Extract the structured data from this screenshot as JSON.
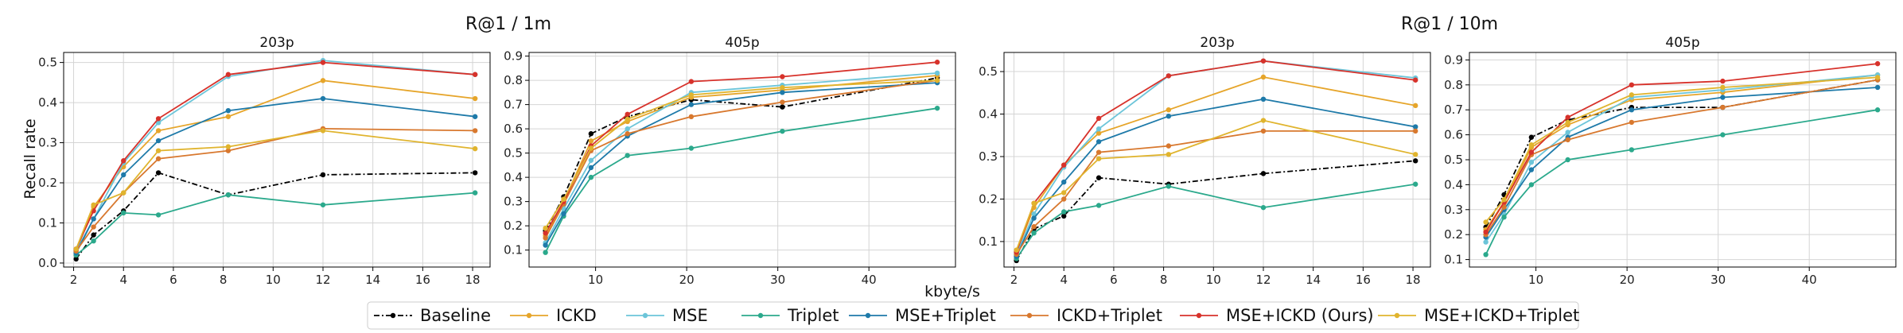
{
  "chart_data": {
    "type": "line",
    "suptitles": [
      "R@1 / 1m",
      "R@1 / 10m"
    ],
    "xlabel": "kbyte/s",
    "ylabel": "Recall rate",
    "series_styles": [
      {
        "name": "Baseline",
        "color": "#000000",
        "dash": "dashdot"
      },
      {
        "name": "ICKD",
        "color": "#e6a52a",
        "dash": "solid"
      },
      {
        "name": "MSE",
        "color": "#6cc5d9",
        "dash": "solid"
      },
      {
        "name": "Triplet",
        "color": "#2ba98c",
        "dash": "solid"
      },
      {
        "name": "MSE+Triplet",
        "color": "#1e7aa9",
        "dash": "solid"
      },
      {
        "name": "ICKD+Triplet",
        "color": "#d8782e",
        "dash": "solid"
      },
      {
        "name": "MSE+ICKD (Ours)",
        "color": "#d7322b",
        "dash": "solid"
      },
      {
        "name": "MSE+ICKD+Triplet",
        "color": "#e0b42e",
        "dash": "solid"
      }
    ],
    "panels": [
      {
        "title": "203p",
        "xlim": [
          1.6,
          18.7
        ],
        "ylim": [
          -0.01,
          0.525
        ],
        "xticks": [
          2,
          4,
          6,
          8,
          10,
          12,
          14,
          16,
          18
        ],
        "yticks": [
          0.0,
          0.1,
          0.2,
          0.3,
          0.4,
          0.5
        ],
        "ytick_labels": [
          "0.0",
          "0.1",
          "0.2",
          "0.3",
          "0.4",
          "0.5"
        ],
        "x": [
          2.1,
          2.8,
          4.0,
          5.4,
          8.2,
          12.0,
          18.1
        ],
        "series": [
          {
            "name": "Baseline",
            "values": [
              0.01,
              0.07,
              0.13,
              0.225,
              0.17,
              0.22,
              0.225
            ]
          },
          {
            "name": "ICKD",
            "values": [
              0.03,
              0.14,
              0.24,
              0.33,
              0.365,
              0.455,
              0.41
            ]
          },
          {
            "name": "MSE",
            "values": [
              0.03,
              0.11,
              0.25,
              0.35,
              0.465,
              0.505,
              0.47
            ]
          },
          {
            "name": "Triplet",
            "values": [
              0.02,
              0.055,
              0.125,
              0.12,
              0.17,
              0.145,
              0.175
            ]
          },
          {
            "name": "MSE+Triplet",
            "values": [
              0.025,
              0.11,
              0.22,
              0.305,
              0.38,
              0.41,
              0.365
            ]
          },
          {
            "name": "ICKD+Triplet",
            "values": [
              0.03,
              0.09,
              0.175,
              0.26,
              0.28,
              0.335,
              0.33
            ]
          },
          {
            "name": "MSE+ICKD (Ours)",
            "values": [
              0.035,
              0.13,
              0.255,
              0.36,
              0.47,
              0.5,
              0.47
            ]
          },
          {
            "name": "MSE+ICKD+Triplet",
            "values": [
              0.035,
              0.145,
              0.175,
              0.28,
              0.29,
              0.33,
              0.285
            ]
          }
        ]
      },
      {
        "title": "405p",
        "xlim": [
          2.7,
          49.5
        ],
        "ylim": [
          0.03,
          0.915
        ],
        "xticks": [
          10,
          20,
          30,
          40
        ],
        "yticks": [
          0.1,
          0.2,
          0.3,
          0.4,
          0.5,
          0.6,
          0.7,
          0.8,
          0.9
        ],
        "ytick_labels": [
          "0.1",
          "0.2",
          "0.3",
          "0.4",
          "0.5",
          "0.6",
          "0.7",
          "0.8",
          "0.9"
        ],
        "x": [
          4.5,
          6.5,
          9.5,
          13.5,
          20.5,
          30.5,
          47.5
        ],
        "series": [
          {
            "name": "Baseline",
            "values": [
              0.18,
              0.32,
              0.58,
              0.65,
              0.72,
              0.69,
              0.81
            ]
          },
          {
            "name": "ICKD",
            "values": [
              0.16,
              0.3,
              0.55,
              0.63,
              0.73,
              0.76,
              0.82
            ]
          },
          {
            "name": "MSE",
            "values": [
              0.13,
              0.27,
              0.47,
              0.6,
              0.75,
              0.78,
              0.83
            ]
          },
          {
            "name": "Triplet",
            "values": [
              0.09,
              0.24,
              0.4,
              0.49,
              0.52,
              0.59,
              0.685
            ]
          },
          {
            "name": "MSE+Triplet",
            "values": [
              0.12,
              0.25,
              0.44,
              0.57,
              0.7,
              0.75,
              0.79
            ]
          },
          {
            "name": "ICKD+Triplet",
            "values": [
              0.15,
              0.29,
              0.51,
              0.58,
              0.65,
              0.71,
              0.8
            ]
          },
          {
            "name": "MSE+ICKD (Ours)",
            "values": [
              0.17,
              0.3,
              0.53,
              0.66,
              0.795,
              0.815,
              0.875
            ]
          },
          {
            "name": "MSE+ICKD+Triplet",
            "values": [
              0.19,
              0.31,
              0.52,
              0.64,
              0.74,
              0.77,
              0.8
            ]
          }
        ]
      },
      {
        "title": "203p",
        "xlim": [
          1.6,
          18.7
        ],
        "ylim": [
          0.04,
          0.545
        ],
        "xticks": [
          2,
          4,
          6,
          8,
          10,
          12,
          14,
          16,
          18
        ],
        "yticks": [
          0.1,
          0.2,
          0.3,
          0.4,
          0.5
        ],
        "ytick_labels": [
          "0.1",
          "0.2",
          "0.3",
          "0.4",
          "0.5"
        ],
        "x": [
          2.1,
          2.8,
          4.0,
          5.4,
          8.2,
          12.0,
          18.1
        ],
        "series": [
          {
            "name": "Baseline",
            "values": [
              0.055,
              0.13,
              0.16,
              0.25,
              0.235,
              0.26,
              0.29
            ]
          },
          {
            "name": "ICKD",
            "values": [
              0.075,
              0.18,
              0.28,
              0.355,
              0.41,
              0.487,
              0.42
            ]
          },
          {
            "name": "MSE",
            "values": [
              0.07,
              0.165,
              0.275,
              0.365,
              0.49,
              0.525,
              0.485
            ]
          },
          {
            "name": "Triplet",
            "values": [
              0.06,
              0.12,
              0.17,
              0.185,
              0.23,
              0.18,
              0.235
            ]
          },
          {
            "name": "MSE+Triplet",
            "values": [
              0.065,
              0.155,
              0.24,
              0.335,
              0.395,
              0.435,
              0.37
            ]
          },
          {
            "name": "ICKD+Triplet",
            "values": [
              0.07,
              0.135,
              0.2,
              0.31,
              0.325,
              0.36,
              0.36
            ]
          },
          {
            "name": "MSE+ICKD (Ours)",
            "values": [
              0.075,
              0.19,
              0.28,
              0.39,
              0.49,
              0.525,
              0.48
            ]
          },
          {
            "name": "MSE+ICKD+Triplet",
            "values": [
              0.08,
              0.19,
              0.215,
              0.295,
              0.305,
              0.385,
              0.305
            ]
          }
        ]
      },
      {
        "title": "405p",
        "xlim": [
          2.7,
          49.5
        ],
        "ylim": [
          0.07,
          0.93
        ],
        "xticks": [
          10,
          20,
          30,
          40
        ],
        "yticks": [
          0.1,
          0.2,
          0.3,
          0.4,
          0.5,
          0.6,
          0.7,
          0.8,
          0.9
        ],
        "ytick_labels": [
          "0.1",
          "0.2",
          "0.3",
          "0.4",
          "0.5",
          "0.6",
          "0.7",
          "0.8",
          "0.9"
        ],
        "x": [
          4.5,
          6.5,
          9.5,
          13.5,
          20.5,
          30.5,
          47.5
        ],
        "series": [
          {
            "name": "Baseline",
            "values": [
              0.23,
              0.36,
              0.59,
              0.66,
              0.71,
              0.71,
              0.82
            ]
          },
          {
            "name": "ICKD",
            "values": [
              0.22,
              0.33,
              0.55,
              0.64,
              0.74,
              0.77,
              0.84
            ]
          },
          {
            "name": "MSE",
            "values": [
              0.17,
              0.28,
              0.49,
              0.61,
              0.75,
              0.78,
              0.84
            ]
          },
          {
            "name": "Triplet",
            "values": [
              0.12,
              0.27,
              0.4,
              0.5,
              0.54,
              0.6,
              0.7
            ]
          },
          {
            "name": "MSE+Triplet",
            "values": [
              0.19,
              0.3,
              0.46,
              0.59,
              0.7,
              0.75,
              0.79
            ]
          },
          {
            "name": "ICKD+Triplet",
            "values": [
              0.2,
              0.31,
              0.52,
              0.58,
              0.65,
              0.71,
              0.82
            ]
          },
          {
            "name": "MSE+ICKD (Ours)",
            "values": [
              0.21,
              0.33,
              0.53,
              0.67,
              0.8,
              0.815,
              0.885
            ]
          },
          {
            "name": "MSE+ICKD+Triplet",
            "values": [
              0.25,
              0.34,
              0.56,
              0.65,
              0.76,
              0.79,
              0.83
            ]
          }
        ]
      }
    ]
  }
}
